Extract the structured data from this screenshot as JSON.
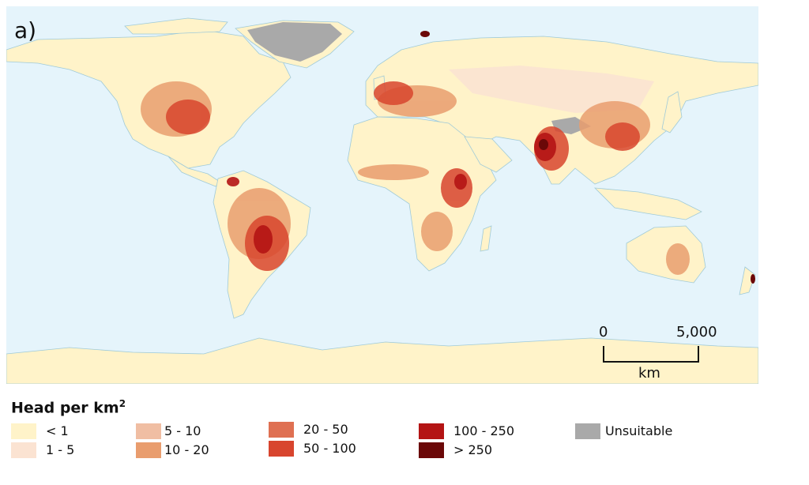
{
  "panel_label": "a)",
  "legend": {
    "title": "Head per km",
    "title_sup": "2",
    "items": [
      {
        "label": "< 1",
        "color": "#fff3c9"
      },
      {
        "label": "1 - 5",
        "color": "#fbe3d2"
      },
      {
        "label": "5 - 10",
        "color": "#f0bea3"
      },
      {
        "label": "10 - 20",
        "color": "#e99d6e"
      },
      {
        "label": "20 - 50",
        "color": "#df7052"
      },
      {
        "label": "50 - 100",
        "color": "#d8452e"
      },
      {
        "label": "100 - 250",
        "color": "#b41414"
      },
      {
        "label": "> 250",
        "color": "#6b0808"
      },
      {
        "label": "Unsuitable",
        "color": "#a9a9a9"
      }
    ]
  },
  "scale_bar": {
    "left_label": "0",
    "right_label": "5,000",
    "unit": "km"
  },
  "colors": {
    "ocean": "#e5f4fb",
    "coast": "#9fcad8"
  }
}
